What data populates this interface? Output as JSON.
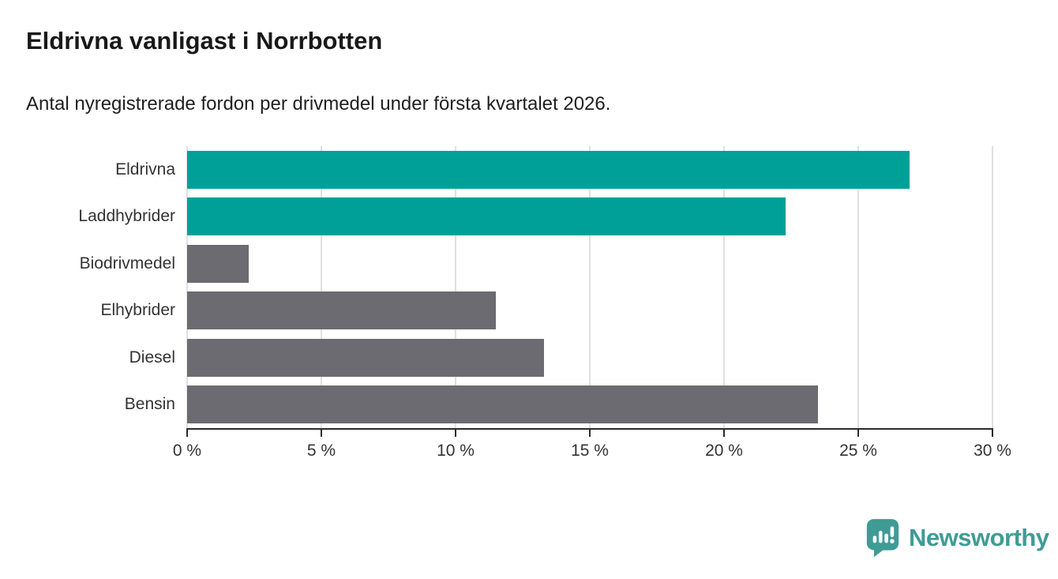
{
  "header": {
    "title": "Eldrivna vanligast i Norrbotten",
    "subtitle": "Antal nyregistrerade fordon per drivmedel under första kvartalet 2026."
  },
  "chart_data": {
    "type": "bar",
    "orientation": "horizontal",
    "title": "Eldrivna vanligast i Norrbotten",
    "subtitle": "Antal nyregistrerade fordon per drivmedel under första kvartalet 2026.",
    "categories": [
      "Eldrivna",
      "Laddhybrider",
      "Biodrivmedel",
      "Elhybrider",
      "Diesel",
      "Bensin"
    ],
    "values": [
      26.9,
      22.3,
      2.3,
      11.5,
      13.3,
      23.5
    ],
    "unit": "%",
    "bar_colors": [
      "#00A099",
      "#00A099",
      "#6C6B71",
      "#6C6B71",
      "#6C6B71",
      "#6C6B71"
    ],
    "highlight_color": "#00A099",
    "default_color": "#6C6B71",
    "xlabel": "",
    "ylabel": "",
    "xlim": [
      0,
      30
    ],
    "grid": true,
    "gridline_color": "#e0e0e0",
    "axis_color": "#2b2b2b",
    "x_ticks": [
      {
        "value": 0,
        "label": "0 %"
      },
      {
        "value": 5,
        "label": "5 %"
      },
      {
        "value": 10,
        "label": "10 %"
      },
      {
        "value": 15,
        "label": "15 %"
      },
      {
        "value": 20,
        "label": "20 %"
      },
      {
        "value": 25,
        "label": "25 %"
      },
      {
        "value": 30,
        "label": "30 %"
      }
    ],
    "legend": null
  },
  "footer": {
    "brand": "Newsworthy",
    "brand_color": "#3E9C95",
    "icon": "speech-bubble-bar-chart-icon"
  }
}
